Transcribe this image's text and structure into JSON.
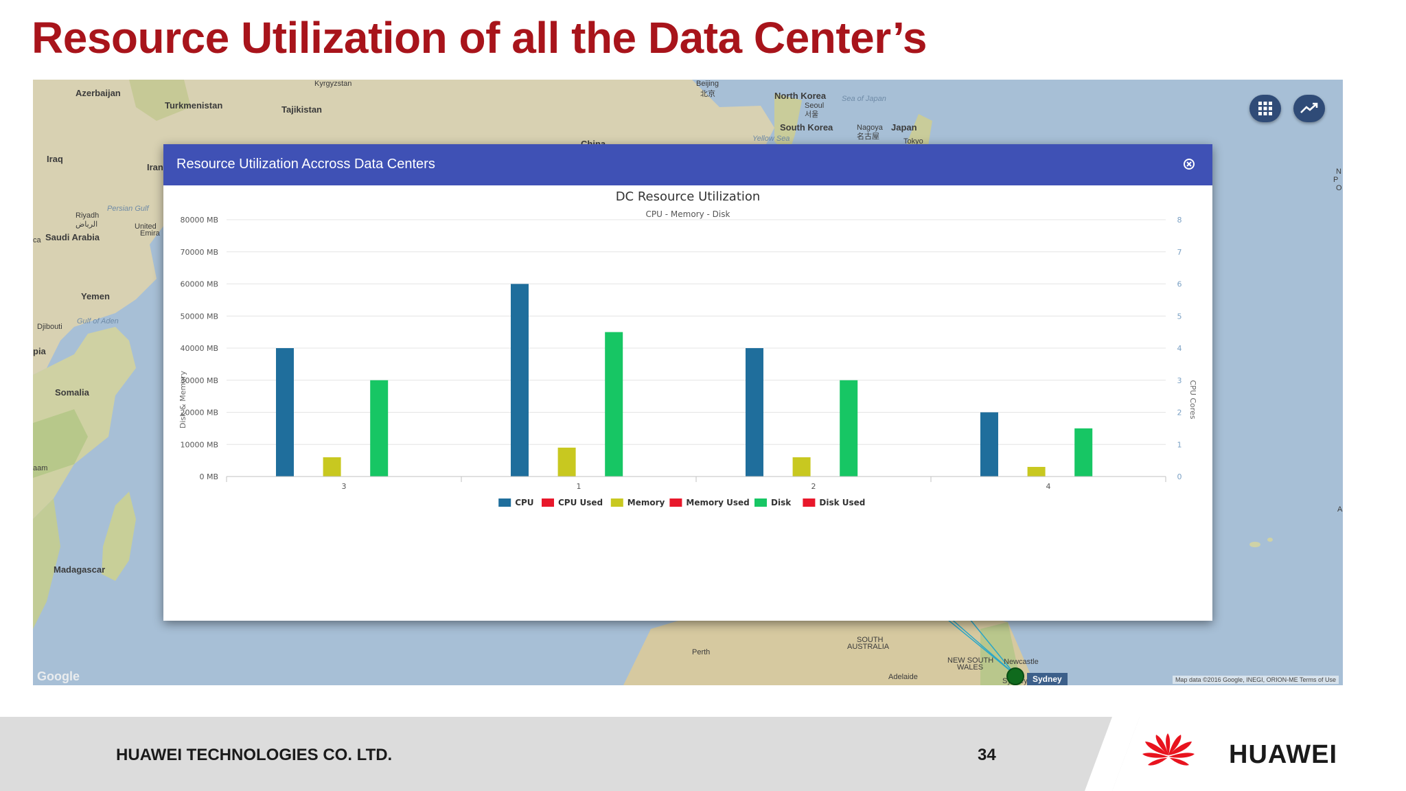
{
  "slide": {
    "title": "Resource Utilization of all the Data Center’s"
  },
  "map": {
    "labels": [
      {
        "text": "Azerbaijan",
        "type": "country"
      },
      {
        "text": "Turkmenistan",
        "type": "country"
      },
      {
        "text": "Kyrgyzstan",
        "type": "small"
      },
      {
        "text": "Tajikistan",
        "type": "country"
      },
      {
        "text": "Iraq",
        "type": "country"
      },
      {
        "text": "Iran",
        "type": "country"
      },
      {
        "text": "Persian Gulf",
        "type": "sea"
      },
      {
        "text": "Riyadh",
        "type": "small"
      },
      {
        "text": "الرياض",
        "type": "small"
      },
      {
        "text": "Saudi Arabia",
        "type": "country"
      },
      {
        "text": "United",
        "type": "small"
      },
      {
        "text": "Emira",
        "type": "small"
      },
      {
        "text": "Yemen",
        "type": "country"
      },
      {
        "text": "Gulf of Aden",
        "type": "sea"
      },
      {
        "text": "Djibouti",
        "type": "small"
      },
      {
        "text": "pia",
        "type": "country"
      },
      {
        "text": "Somalia",
        "type": "country"
      },
      {
        "text": "aam",
        "type": "small"
      },
      {
        "text": "Madagascar",
        "type": "country"
      },
      {
        "text": "ca",
        "type": "small"
      },
      {
        "text": "Beijing",
        "type": "small"
      },
      {
        "text": "北京",
        "type": "small"
      },
      {
        "text": "North Korea",
        "type": "country"
      },
      {
        "text": "Sea of Japan",
        "type": "sea"
      },
      {
        "text": "Seoul",
        "type": "small"
      },
      {
        "text": "서울",
        "type": "small"
      },
      {
        "text": "South Korea",
        "type": "country"
      },
      {
        "text": "Nagoya",
        "type": "small"
      },
      {
        "text": "名古屋",
        "type": "small"
      },
      {
        "text": "Japan",
        "type": "country"
      },
      {
        "text": "Tokyo",
        "type": "small"
      },
      {
        "text": "Yellow Sea",
        "type": "sea"
      },
      {
        "text": "China",
        "type": "country"
      },
      {
        "text": "Perth",
        "type": "small"
      },
      {
        "text": "SOUTH",
        "type": "small"
      },
      {
        "text": "AUSTRALIA",
        "type": "small"
      },
      {
        "text": "NEW SOUTH",
        "type": "small"
      },
      {
        "text": "WALES",
        "type": "small"
      },
      {
        "text": "Newcastle",
        "type": "small"
      },
      {
        "text": "Adelaide",
        "type": "small"
      },
      {
        "text": "Sydney",
        "type": "small"
      },
      {
        "text": "N",
        "type": "small"
      },
      {
        "text": "P",
        "type": "small"
      },
      {
        "text": "O",
        "type": "small"
      },
      {
        "text": "A",
        "type": "small"
      }
    ],
    "google_logo": "Google",
    "attribution": "Map data ©2016 Google, INEGI, ORION-ME    Terms of Use",
    "city_tag": "Sydney",
    "buttons": {
      "grid_icon": "grid-icon",
      "chart_icon": "trending-icon"
    },
    "colors": {
      "sea": "#a7bfd6",
      "land": "#d9d2b6",
      "button": "#2f4b77"
    }
  },
  "modal": {
    "title": "Resource Utilization Accross Data Centers",
    "header_color": "#3f51b5",
    "close_icon": "close-circle-icon"
  },
  "chart_data": {
    "type": "bar",
    "title": "DC Resource Utilization",
    "subtitle": "CPU - Memory - Disk",
    "categories": [
      "3",
      "1",
      "2",
      "4"
    ],
    "ylabel": "Disk & Memory",
    "y2label": "CPU Cores",
    "ylim": [
      0,
      80000
    ],
    "y2lim": [
      0,
      8
    ],
    "y_ticks": [
      "0 MB",
      "10000 MB",
      "20000 MB",
      "30000 MB",
      "40000 MB",
      "50000 MB",
      "60000 MB",
      "70000 MB",
      "80000 MB"
    ],
    "y2_ticks": [
      "0",
      "1",
      "2",
      "3",
      "4",
      "5",
      "6",
      "7",
      "8"
    ],
    "series": [
      {
        "name": "CPU",
        "axis": "right",
        "color": "#1f6e9c",
        "values": [
          4,
          6,
          4,
          2
        ]
      },
      {
        "name": "CPU Used",
        "axis": "right",
        "color": "#e8182b",
        "values": [
          0,
          0,
          0,
          0
        ]
      },
      {
        "name": "Memory",
        "axis": "left",
        "color": "#c8c820",
        "values": [
          6000,
          9000,
          6000,
          3000
        ]
      },
      {
        "name": "Memory Used",
        "axis": "left",
        "color": "#e8182b",
        "values": [
          0,
          0,
          0,
          0
        ]
      },
      {
        "name": "Disk",
        "axis": "left",
        "color": "#17c664",
        "values": [
          30000,
          45000,
          30000,
          15000
        ]
      },
      {
        "name": "Disk Used",
        "axis": "left",
        "color": "#e8182b",
        "values": [
          0,
          0,
          0,
          0
        ]
      }
    ],
    "grid": true,
    "legend_position": "bottom-center"
  },
  "footer": {
    "company": "HUAWEI TECHNOLOGIES CO. LTD.",
    "page_number": "34",
    "brand": "HUAWEI",
    "brand_color": "#e8131e"
  }
}
